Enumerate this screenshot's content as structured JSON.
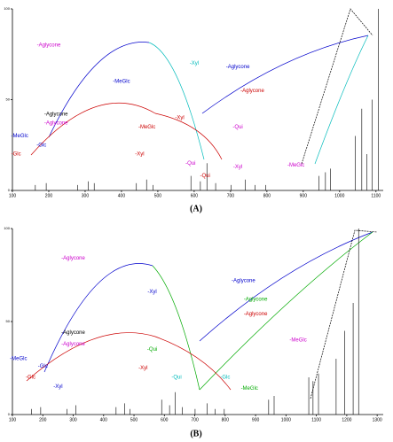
{
  "chart_data": [
    {
      "type": "stem",
      "caption": "(A)",
      "xlim": [
        100,
        1120
      ],
      "xticks": [
        100,
        200,
        300,
        400,
        500,
        600,
        700,
        800,
        900,
        1000,
        1100
      ],
      "ylim": [
        0,
        100
      ],
      "yticks": [
        0,
        50,
        100
      ],
      "x": [
        163,
        193,
        279,
        309,
        325,
        441,
        469,
        487,
        591,
        617,
        635,
        659,
        701,
        741,
        767,
        797,
        943,
        961,
        975,
        1043,
        1061,
        1075,
        1089,
        1107
      ],
      "values": [
        3,
        4,
        3,
        5,
        4,
        4,
        6,
        3,
        8,
        5,
        15,
        4,
        3,
        6,
        3,
        3,
        8,
        10,
        12,
        30,
        45,
        20,
        50,
        100
      ],
      "color": "#000000",
      "annotations": [
        {
          "text": "-Aglycone",
          "x": 200,
          "y": 80,
          "color": "#cc00cc"
        },
        {
          "text": "-Aglycone",
          "x": 220,
          "y": 42,
          "color": "#000000"
        },
        {
          "text": "-Aglycone",
          "x": 220,
          "y": 37,
          "color": "#cc00cc"
        },
        {
          "text": "-Aglycone",
          "x": 720,
          "y": 68,
          "color": "#0000cc"
        },
        {
          "text": "-Aglycone",
          "x": 760,
          "y": 55,
          "color": "#cc0000"
        },
        {
          "text": "-MeGlc",
          "x": 120,
          "y": 30,
          "color": "#0000cc"
        },
        {
          "text": "-Glc",
          "x": 180,
          "y": 25,
          "color": "#0000cc"
        },
        {
          "text": "-Glc",
          "x": 110,
          "y": 20,
          "color": "#cc0000"
        },
        {
          "text": "-Xyl",
          "x": 450,
          "y": 20,
          "color": "#cc0000"
        },
        {
          "text": "-Xyl",
          "x": 560,
          "y": 40,
          "color": "#cc0000"
        },
        {
          "text": "-MeGlc",
          "x": 470,
          "y": 35,
          "color": "#cc0000"
        },
        {
          "text": "-Qui",
          "x": 590,
          "y": 15,
          "color": "#cc00cc"
        },
        {
          "text": "-Qui",
          "x": 630,
          "y": 8,
          "color": "#cc0000"
        },
        {
          "text": "-Qui",
          "x": 720,
          "y": 35,
          "color": "#cc00cc"
        },
        {
          "text": "-Xyl",
          "x": 720,
          "y": 13,
          "color": "#cc00cc"
        },
        {
          "text": "-MeGlc",
          "x": 880,
          "y": 14,
          "color": "#cc00cc"
        },
        {
          "text": "-MeGlc",
          "x": 400,
          "y": 60,
          "color": "#0000cc"
        },
        {
          "text": "-Xyl",
          "x": 600,
          "y": 70,
          "color": "#00bbbb"
        }
      ]
    },
    {
      "type": "stem",
      "caption": "(B)",
      "xlim": [
        100,
        1320
      ],
      "xticks": [
        100,
        200,
        300,
        400,
        500,
        600,
        700,
        800,
        900,
        1000,
        1100,
        1200,
        1300
      ],
      "ylim": [
        0,
        100
      ],
      "yticks": [
        0,
        50,
        100
      ],
      "x": [
        163,
        193,
        279,
        309,
        441,
        469,
        487,
        591,
        617,
        635,
        659,
        701,
        741,
        767,
        797,
        943,
        961,
        1075,
        1089,
        1107,
        1165,
        1193,
        1221,
        1239
      ],
      "values": [
        3,
        4,
        3,
        5,
        4,
        6,
        3,
        8,
        5,
        12,
        4,
        3,
        6,
        3,
        3,
        8,
        10,
        20,
        18,
        22,
        30,
        45,
        60,
        100
      ],
      "color": "#000000",
      "annotations": [
        {
          "text": "-Aglycone",
          "x": 300,
          "y": 84,
          "color": "#cc00cc"
        },
        {
          "text": "-Aglycone",
          "x": 300,
          "y": 44,
          "color": "#000000"
        },
        {
          "text": "-Aglycone",
          "x": 300,
          "y": 38,
          "color": "#cc00cc"
        },
        {
          "text": "-Aglycone",
          "x": 860,
          "y": 72,
          "color": "#0000cc"
        },
        {
          "text": "-Aglycone",
          "x": 900,
          "y": 62,
          "color": "#00aa00"
        },
        {
          "text": "-Aglycone",
          "x": 900,
          "y": 54,
          "color": "#cc0000"
        },
        {
          "text": "-MeGlc",
          "x": 120,
          "y": 30,
          "color": "#0000cc"
        },
        {
          "text": "-Glc",
          "x": 160,
          "y": 20,
          "color": "#cc0000"
        },
        {
          "text": "-Glc",
          "x": 200,
          "y": 26,
          "color": "#0000cc"
        },
        {
          "text": "-Xyl",
          "x": 250,
          "y": 15,
          "color": "#0000cc"
        },
        {
          "text": "-Xyl",
          "x": 530,
          "y": 25,
          "color": "#cc0000"
        },
        {
          "text": "-Xyl",
          "x": 560,
          "y": 66,
          "color": "#0000cc"
        },
        {
          "text": "-Qui",
          "x": 560,
          "y": 35,
          "color": "#00aa00"
        },
        {
          "text": "-Qui",
          "x": 640,
          "y": 20,
          "color": "#00bbbb"
        },
        {
          "text": "-Glc",
          "x": 800,
          "y": 20,
          "color": "#00bbbb"
        },
        {
          "text": "-MeGlc",
          "x": 880,
          "y": 14,
          "color": "#00aa00"
        },
        {
          "text": "-MeGlc",
          "x": 1040,
          "y": 40,
          "color": "#cc00cc"
        }
      ]
    }
  ]
}
